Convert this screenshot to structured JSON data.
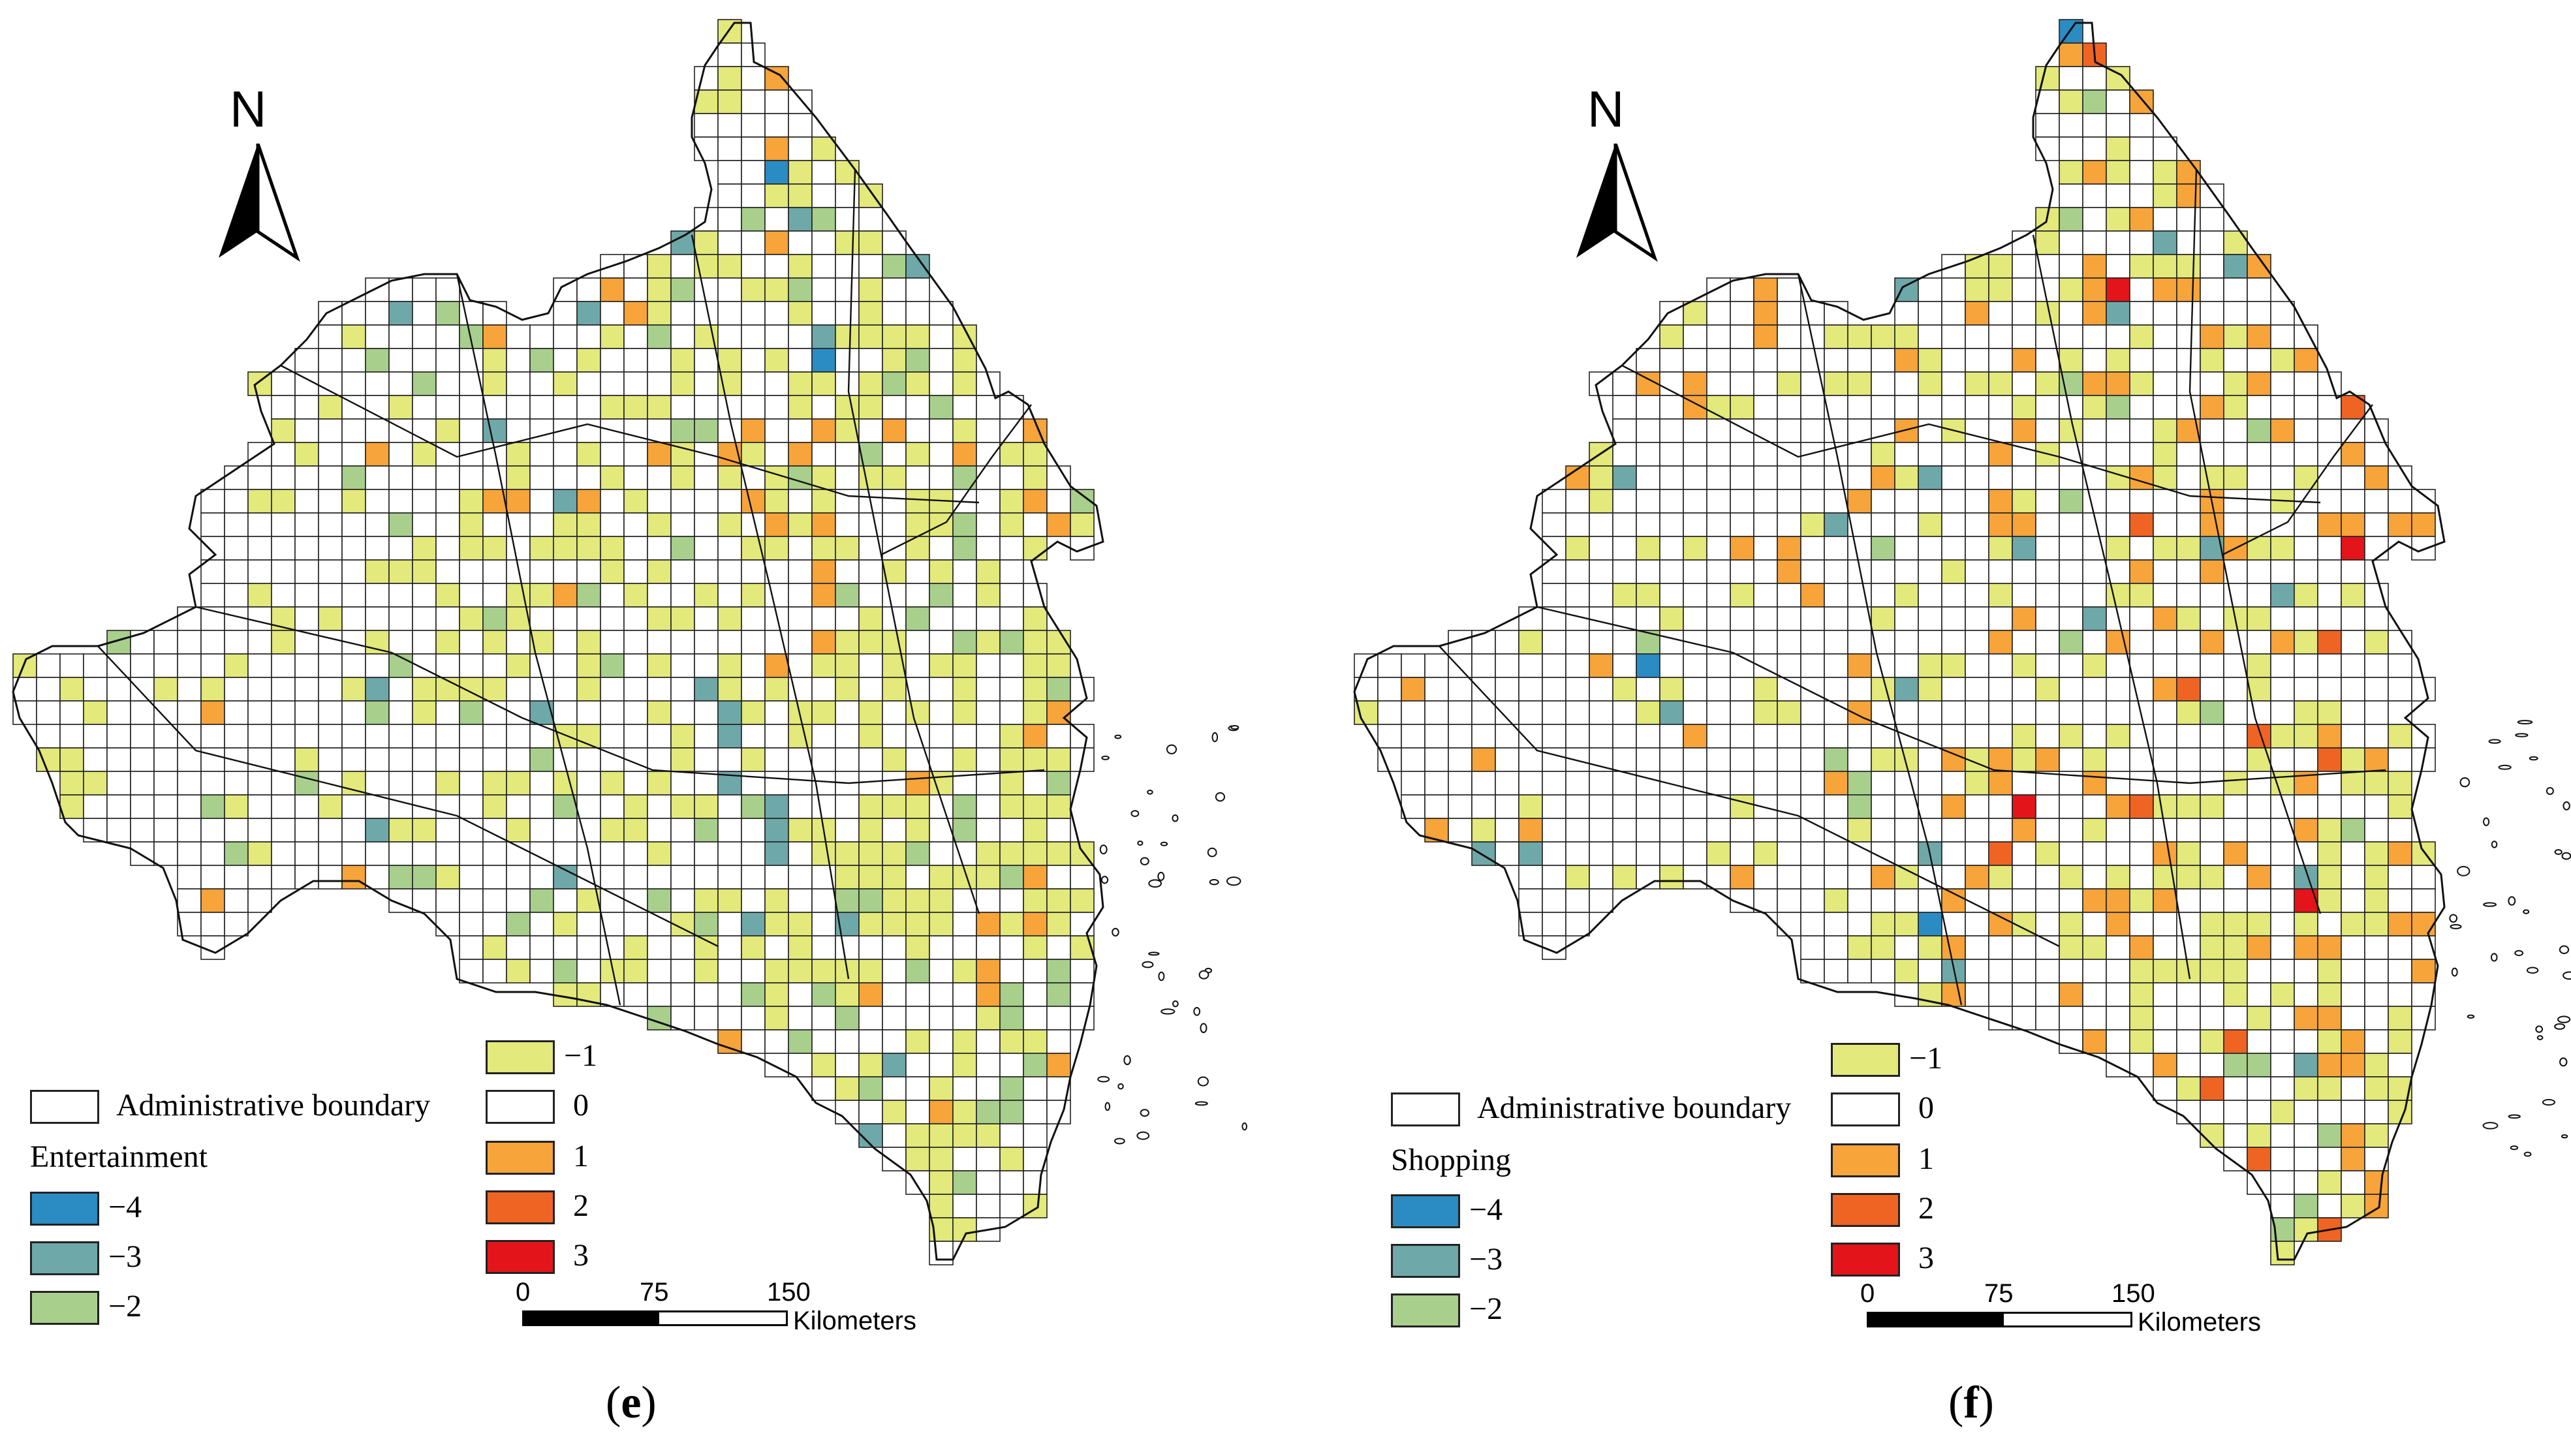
{
  "panels": [
    {
      "id": "e",
      "caption_letter": "e",
      "category": "Entertainment",
      "boundary_label": "Administrative boundary",
      "north_label": "N",
      "scale": {
        "ticks": [
          "0",
          "75",
          "150"
        ],
        "unit": "Kilometers"
      }
    },
    {
      "id": "f",
      "caption_letter": "f",
      "category": "Shopping",
      "boundary_label": "Administrative boundary",
      "north_label": "N",
      "scale": {
        "ticks": [
          "0",
          "75",
          "150"
        ],
        "unit": "Kilometers"
      }
    }
  ],
  "legend_classes": [
    {
      "value": "−4",
      "color": "#2b8cc4"
    },
    {
      "value": "−3",
      "color": "#6fa8a8"
    },
    {
      "value": "−2",
      "color": "#a9cf8c"
    },
    {
      "value": "−1",
      "color": "#e3e97a"
    },
    {
      "value": "0",
      "color": "#ffffff"
    },
    {
      "value": "1",
      "color": "#f7a43a"
    },
    {
      "value": "2",
      "color": "#f06423"
    },
    {
      "value": "3",
      "color": "#e3151a"
    }
  ]
}
